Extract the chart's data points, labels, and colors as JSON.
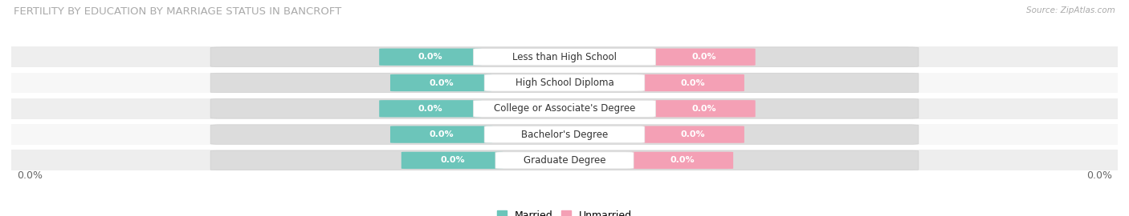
{
  "title": "FERTILITY BY EDUCATION BY MARRIAGE STATUS IN BANCROFT",
  "source": "Source: ZipAtlas.com",
  "categories": [
    "Less than High School",
    "High School Diploma",
    "College or Associate's Degree",
    "Bachelor's Degree",
    "Graduate Degree"
  ],
  "married_values": [
    0.0,
    0.0,
    0.0,
    0.0,
    0.0
  ],
  "unmarried_values": [
    0.0,
    0.0,
    0.0,
    0.0,
    0.0
  ],
  "married_color": "#6cc5ba",
  "unmarried_color": "#f4a0b5",
  "row_bg_colors": [
    "#eeeeee",
    "#f7f7f7"
  ],
  "title_fontsize": 9.5,
  "source_fontsize": 7.5,
  "value_label_fontsize": 8,
  "category_fontsize": 8.5,
  "figsize": [
    14.06,
    2.7
  ],
  "dpi": 100
}
